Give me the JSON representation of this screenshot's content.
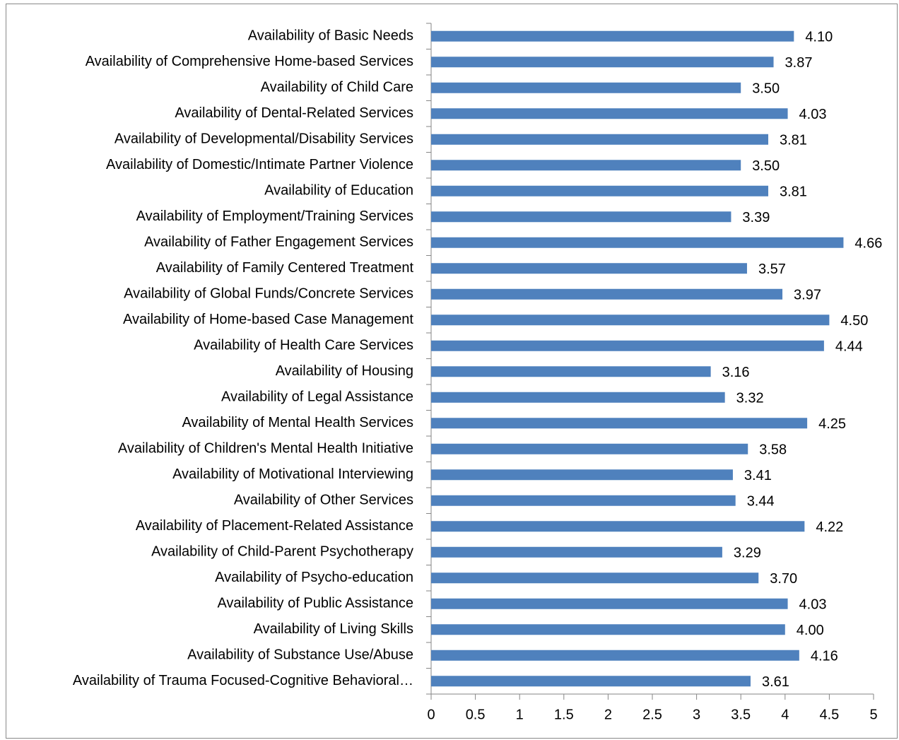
{
  "chart_data": {
    "type": "hbar",
    "categories": [
      "Availability of Basic Needs",
      "Availability of Comprehensive Home-based Services",
      "Availability of Child Care",
      "Availability of Dental-Related Services",
      "Availability of Developmental/Disability Services",
      "Availability of Domestic/Intimate Partner Violence",
      "Availability of Education",
      "Availability of Employment/Training Services",
      "Availability of Father Engagement Services",
      "Availability of Family Centered Treatment",
      "Availability of Global Funds/Concrete Services",
      "Availability of Home-based Case Management",
      "Availability of Health Care Services",
      "Availability of Housing",
      "Availability of Legal Assistance",
      "Availability of Mental Health Services",
      "Availability of Children's Mental Health Initiative",
      "Availability of Motivational Interviewing",
      "Availability of Other Services",
      "Availability of Placement-Related Assistance",
      "Availability of Child-Parent Psychotherapy",
      "Availability of Psycho-education",
      "Availability of Public Assistance",
      "Availability of Living Skills",
      "Availability of Substance Use/Abuse",
      "Availability of Trauma Focused-Cognitive Behavioral…"
    ],
    "values": [
      4.1,
      3.87,
      3.5,
      4.03,
      3.81,
      3.5,
      3.81,
      3.39,
      4.66,
      3.57,
      3.97,
      4.5,
      4.44,
      3.16,
      3.32,
      4.25,
      3.58,
      3.41,
      3.44,
      4.22,
      3.29,
      3.7,
      4.03,
      4.0,
      4.16,
      3.61
    ],
    "value_labels": [
      "4.10",
      "3.87",
      "3.50",
      "4.03",
      "3.81",
      "3.50",
      "3.81",
      "3.39",
      "4.66",
      "3.57",
      "3.97",
      "4.50",
      "4.44",
      "3.16",
      "3.32",
      "4.25",
      "3.58",
      "3.41",
      "3.44",
      "4.22",
      "3.29",
      "3.70",
      "4.03",
      "4.00",
      "4.16",
      "3.61"
    ],
    "color": "#4f81bd",
    "xlim": [
      0,
      5
    ],
    "xticks": [
      0,
      0.5,
      1,
      1.5,
      2,
      2.5,
      3,
      3.5,
      4,
      4.5,
      5
    ],
    "grid": false
  }
}
